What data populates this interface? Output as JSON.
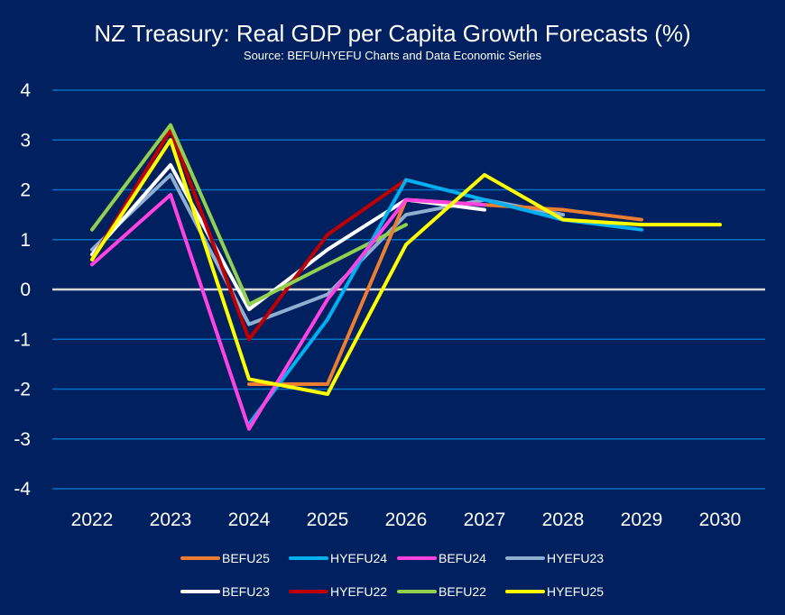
{
  "chart_data": {
    "type": "line",
    "title": "NZ Treasury: Real GDP per Capita Growth Forecasts (%)",
    "subtitle": "Source: BEFU/HYEFU Charts and Data Economic Series",
    "xlabel": "",
    "ylabel": "",
    "categories": [
      "2022",
      "2023",
      "2024",
      "2025",
      "2026",
      "2027",
      "2028",
      "2029",
      "2030"
    ],
    "y_ticks": [
      "4",
      "3",
      "2",
      "1",
      "0",
      "-1",
      "-2",
      "-3",
      "-4"
    ],
    "ylim": [
      -4,
      4
    ],
    "grid": true,
    "legend_position": "bottom",
    "series": [
      {
        "name": "HYEFU23",
        "color": "#8EAED2",
        "values": [
          0.8,
          2.3,
          -0.7,
          -0.1,
          1.5,
          1.8,
          1.5,
          null,
          null
        ]
      },
      {
        "name": "BEFU23",
        "color": "#FFFFFF",
        "values": [
          0.7,
          2.5,
          -0.4,
          0.8,
          1.8,
          1.6,
          null,
          null,
          null
        ]
      },
      {
        "name": "HYEFU22",
        "color": "#C00000",
        "values": [
          0.6,
          3.2,
          -1.0,
          1.1,
          2.2,
          null,
          null,
          null,
          null
        ]
      },
      {
        "name": "BEFU22",
        "color": "#92D050",
        "values": [
          1.2,
          3.3,
          -0.3,
          0.5,
          1.3,
          null,
          null,
          null,
          null
        ]
      },
      {
        "name": "BEFU25",
        "color": "#ED7D31",
        "values": [
          null,
          null,
          -1.9,
          -1.9,
          1.8,
          1.7,
          1.6,
          1.4,
          null
        ]
      },
      {
        "name": "HYEFU24",
        "color": "#00B0F0",
        "values": [
          null,
          null,
          -2.7,
          -0.6,
          2.2,
          1.8,
          1.4,
          1.2,
          null
        ]
      },
      {
        "name": "BEFU24",
        "color": "#FF43E0",
        "values": [
          0.5,
          1.9,
          -2.8,
          -0.2,
          1.8,
          1.7,
          null,
          null,
          null
        ]
      },
      {
        "name": "HYEFU25",
        "color": "#FFFF00",
        "values": [
          0.6,
          3.0,
          -1.8,
          -2.1,
          0.9,
          2.3,
          1.4,
          1.3,
          1.3
        ]
      }
    ],
    "legend": [
      {
        "name": "BEFU25",
        "color": "#ED7D31"
      },
      {
        "name": "HYEFU24",
        "color": "#00B0F0"
      },
      {
        "name": "BEFU24",
        "color": "#FF43E0"
      },
      {
        "name": "HYEFU23",
        "color": "#8EAED2"
      },
      {
        "name": "BEFU23",
        "color": "#FFFFFF"
      },
      {
        "name": "HYEFU22",
        "color": "#C00000"
      },
      {
        "name": "BEFU22",
        "color": "#92D050"
      },
      {
        "name": "HYEFU25",
        "color": "#FFFF00"
      }
    ],
    "colors": {
      "background": "#002060",
      "gridline": "#0070C0",
      "zero_line": "#D9D9D9",
      "text": "#FFFFFF"
    }
  }
}
